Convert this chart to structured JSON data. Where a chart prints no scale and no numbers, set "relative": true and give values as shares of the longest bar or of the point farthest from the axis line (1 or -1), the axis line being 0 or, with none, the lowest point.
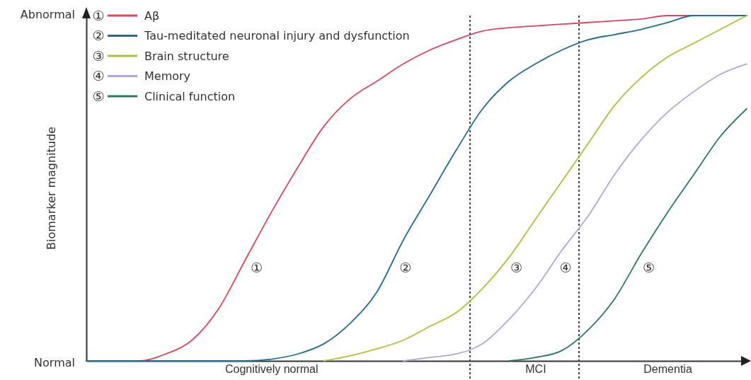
{
  "chart_data": {
    "type": "line",
    "ylabel": "Biomarker magnitude",
    "relative": true,
    "categories": [
      null,
      null,
      null,
      null,
      null,
      null,
      null,
      "Cognitively normal",
      null,
      null,
      null,
      null,
      null,
      null,
      null,
      null,
      null,
      "MCI",
      null,
      null,
      null,
      null,
      "Dementia",
      null,
      null,
      null
    ],
    "grid": false,
    "legend": "top left",
    "marker": "none",
    "line_style": "solid",
    "annotations": [
      "Normal",
      "Abnormal",
      "①",
      "②",
      "③",
      "④",
      "⑤"
    ],
    "series": [
      {
        "name": "Aβ",
        "color": "#d9475d",
        "values": [
          0,
          0,
          0,
          0.02,
          0.06,
          0.15,
          0.29,
          0.43,
          0.56,
          0.68,
          0.76,
          0.81,
          0.86,
          0.9,
          0.93,
          0.955,
          0.965,
          0.97,
          0.975,
          0.98,
          0.985,
          0.99,
          1,
          1,
          1,
          1
        ]
      },
      {
        "name": "Tau-meditated neuronal injury and dysfunction",
        "color": "#1f6e94",
        "values": [
          0,
          0,
          0,
          0,
          0,
          0,
          0,
          0.005,
          0.02,
          0.05,
          0.11,
          0.2,
          0.35,
          0.48,
          0.61,
          0.73,
          0.81,
          0.86,
          0.9,
          0.93,
          0.945,
          0.96,
          0.98,
          1,
          1,
          1
        ]
      },
      {
        "name": "Brain structure",
        "color": "#a8c33c",
        "values": [
          null,
          null,
          null,
          null,
          null,
          null,
          null,
          null,
          null,
          0,
          0.015,
          0.035,
          0.06,
          0.1,
          0.14,
          0.21,
          0.3,
          0.41,
          0.52,
          0.63,
          0.74,
          0.82,
          0.88,
          0.92,
          0.96,
          1
        ]
      },
      {
        "name": "Memory",
        "color": "#b0a8d4",
        "values": [
          null,
          null,
          null,
          null,
          null,
          null,
          null,
          null,
          null,
          null,
          null,
          null,
          0,
          0.01,
          0.02,
          0.05,
          0.12,
          0.21,
          0.32,
          0.42,
          0.54,
          0.64,
          0.72,
          0.78,
          0.83,
          0.86
        ]
      },
      {
        "name": "Clinical function",
        "color": "#2a7a5e",
        "values": [
          null,
          null,
          null,
          null,
          null,
          null,
          null,
          null,
          null,
          null,
          null,
          null,
          null,
          null,
          null,
          null,
          0,
          0.01,
          0.03,
          0.09,
          0.18,
          0.31,
          0.43,
          0.54,
          0.65,
          0.73
        ]
      }
    ]
  }
}
